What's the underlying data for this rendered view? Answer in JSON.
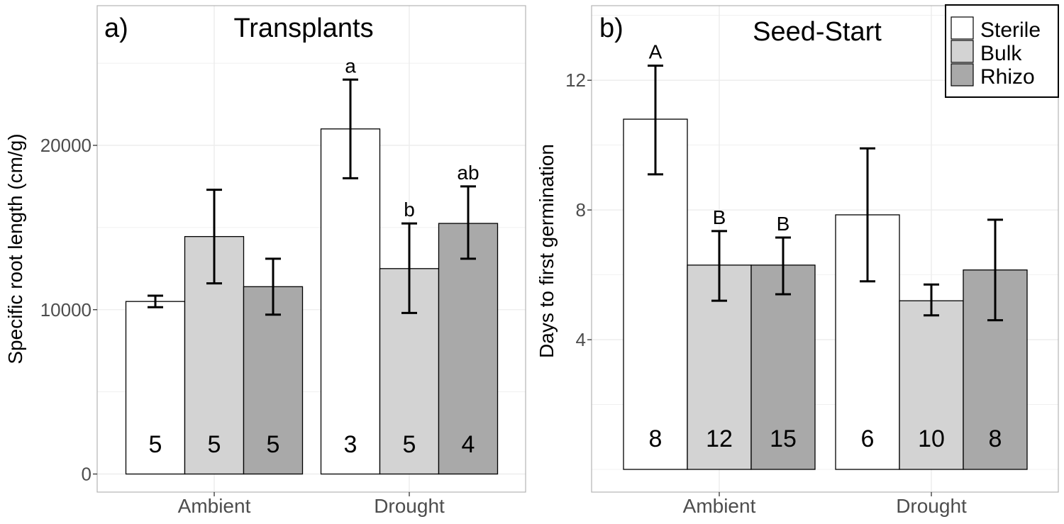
{
  "colors": {
    "Sterile": "#ffffff",
    "Bulk": "#d3d3d3",
    "Rhizo": "#a9a9a9",
    "grid": "#ebebeb",
    "panel_border": "#b3b3b3"
  },
  "legend": {
    "position": "top-right",
    "items": [
      "Sterile",
      "Bulk",
      "Rhizo"
    ]
  },
  "chart_data": [
    {
      "type": "bar",
      "panel_label": "a)",
      "title": "Transplants",
      "xlabel": "",
      "ylabel": "Specific root length (cm/g)",
      "categories": [
        "Ambient",
        "Drought"
      ],
      "yticks": [
        "0",
        "10000",
        "20000"
      ],
      "ylim": [
        -1100,
        28500
      ],
      "grid": true,
      "series": [
        {
          "name": "Sterile",
          "values": [
            10500,
            21000
          ],
          "err_low": [
            10150,
            18000
          ],
          "err_high": [
            10850,
            24000
          ],
          "n": [
            "5",
            "3"
          ],
          "letters": [
            "",
            "a"
          ]
        },
        {
          "name": "Bulk",
          "values": [
            14450,
            12500
          ],
          "err_low": [
            11600,
            9800
          ],
          "err_high": [
            17300,
            15250
          ],
          "n": [
            "5",
            "5"
          ],
          "letters": [
            "",
            "b"
          ]
        },
        {
          "name": "Rhizo",
          "values": [
            11400,
            15250
          ],
          "err_low": [
            9700,
            13100
          ],
          "err_high": [
            13100,
            17500
          ],
          "n": [
            "5",
            "4"
          ],
          "letters": [
            "",
            "ab"
          ]
        }
      ]
    },
    {
      "type": "bar",
      "panel_label": "b)",
      "title": "Seed-Start",
      "xlabel": "",
      "ylabel": "Days to first germination",
      "categories": [
        "Ambient",
        "Drought"
      ],
      "yticks": [
        "4",
        "8",
        "12"
      ],
      "ylim": [
        -0.7,
        14.3
      ],
      "grid": true,
      "series": [
        {
          "name": "Sterile",
          "values": [
            10.8,
            7.85
          ],
          "err_low": [
            9.1,
            5.8
          ],
          "err_high": [
            12.45,
            9.9
          ],
          "n": [
            "8",
            "6"
          ],
          "letters": [
            "A",
            ""
          ]
        },
        {
          "name": "Bulk",
          "values": [
            6.3,
            5.2
          ],
          "err_low": [
            5.2,
            4.75
          ],
          "err_high": [
            7.35,
            5.7
          ],
          "n": [
            "12",
            "10"
          ],
          "letters": [
            "B",
            ""
          ]
        },
        {
          "name": "Rhizo",
          "values": [
            6.3,
            6.15
          ],
          "err_low": [
            5.4,
            4.6
          ],
          "err_high": [
            7.15,
            7.7
          ],
          "n": [
            "15",
            "8"
          ],
          "letters": [
            "B",
            ""
          ]
        }
      ]
    }
  ]
}
